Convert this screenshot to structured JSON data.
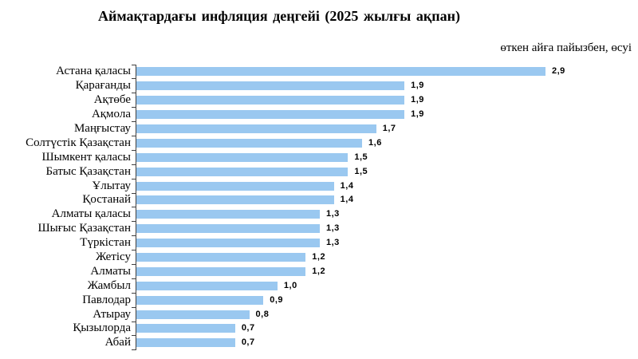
{
  "title": "Аймақтардағы  инфляция деңгейі (2025 жылғы ақпан)",
  "subtitle": "өткен айға пайызбен, өсуі",
  "chart_data": {
    "type": "bar",
    "orientation": "horizontal",
    "title": "Аймақтардағы  инфляция деңгейі (2025 жылғы ақпан)",
    "subtitle": "өткен айға пайызбен, өсуі",
    "xlabel": "",
    "ylabel": "",
    "xlim": [
      0,
      2.9
    ],
    "grid": false,
    "legend": false,
    "value_labels_position": "end-of-bar",
    "bar_color": "#9AC8F0",
    "axis_color": "#404040",
    "categories": [
      "Астана қаласы",
      "Қарағанды",
      "Ақтөбе",
      "Ақмола",
      "Маңғыстау",
      "Солтүстік Қазақстан",
      "Шымкент қаласы",
      "Батыс Қазақстан",
      "Ұлытау",
      "Қостанай",
      "Алматы қаласы",
      "Шығыс Қазақстан",
      "Түркістан",
      "Жетісу",
      "Алматы",
      "Жамбыл",
      "Павлодар",
      "Атырау",
      "Қызылорда",
      "Абай"
    ],
    "values": [
      2.9,
      1.9,
      1.9,
      1.9,
      1.7,
      1.6,
      1.5,
      1.5,
      1.4,
      1.4,
      1.3,
      1.3,
      1.3,
      1.2,
      1.2,
      1.0,
      0.9,
      0.8,
      0.7,
      0.7
    ],
    "values_display": [
      "2,9",
      "1,9",
      "1,9",
      "1,9",
      "1,7",
      "1,6",
      "1,5",
      "1,5",
      "1,4",
      "1,4",
      "1,3",
      "1,3",
      "1,3",
      "1,2",
      "1,2",
      "1,0",
      "0,9",
      "0,8",
      "0,7",
      "0,7"
    ]
  }
}
